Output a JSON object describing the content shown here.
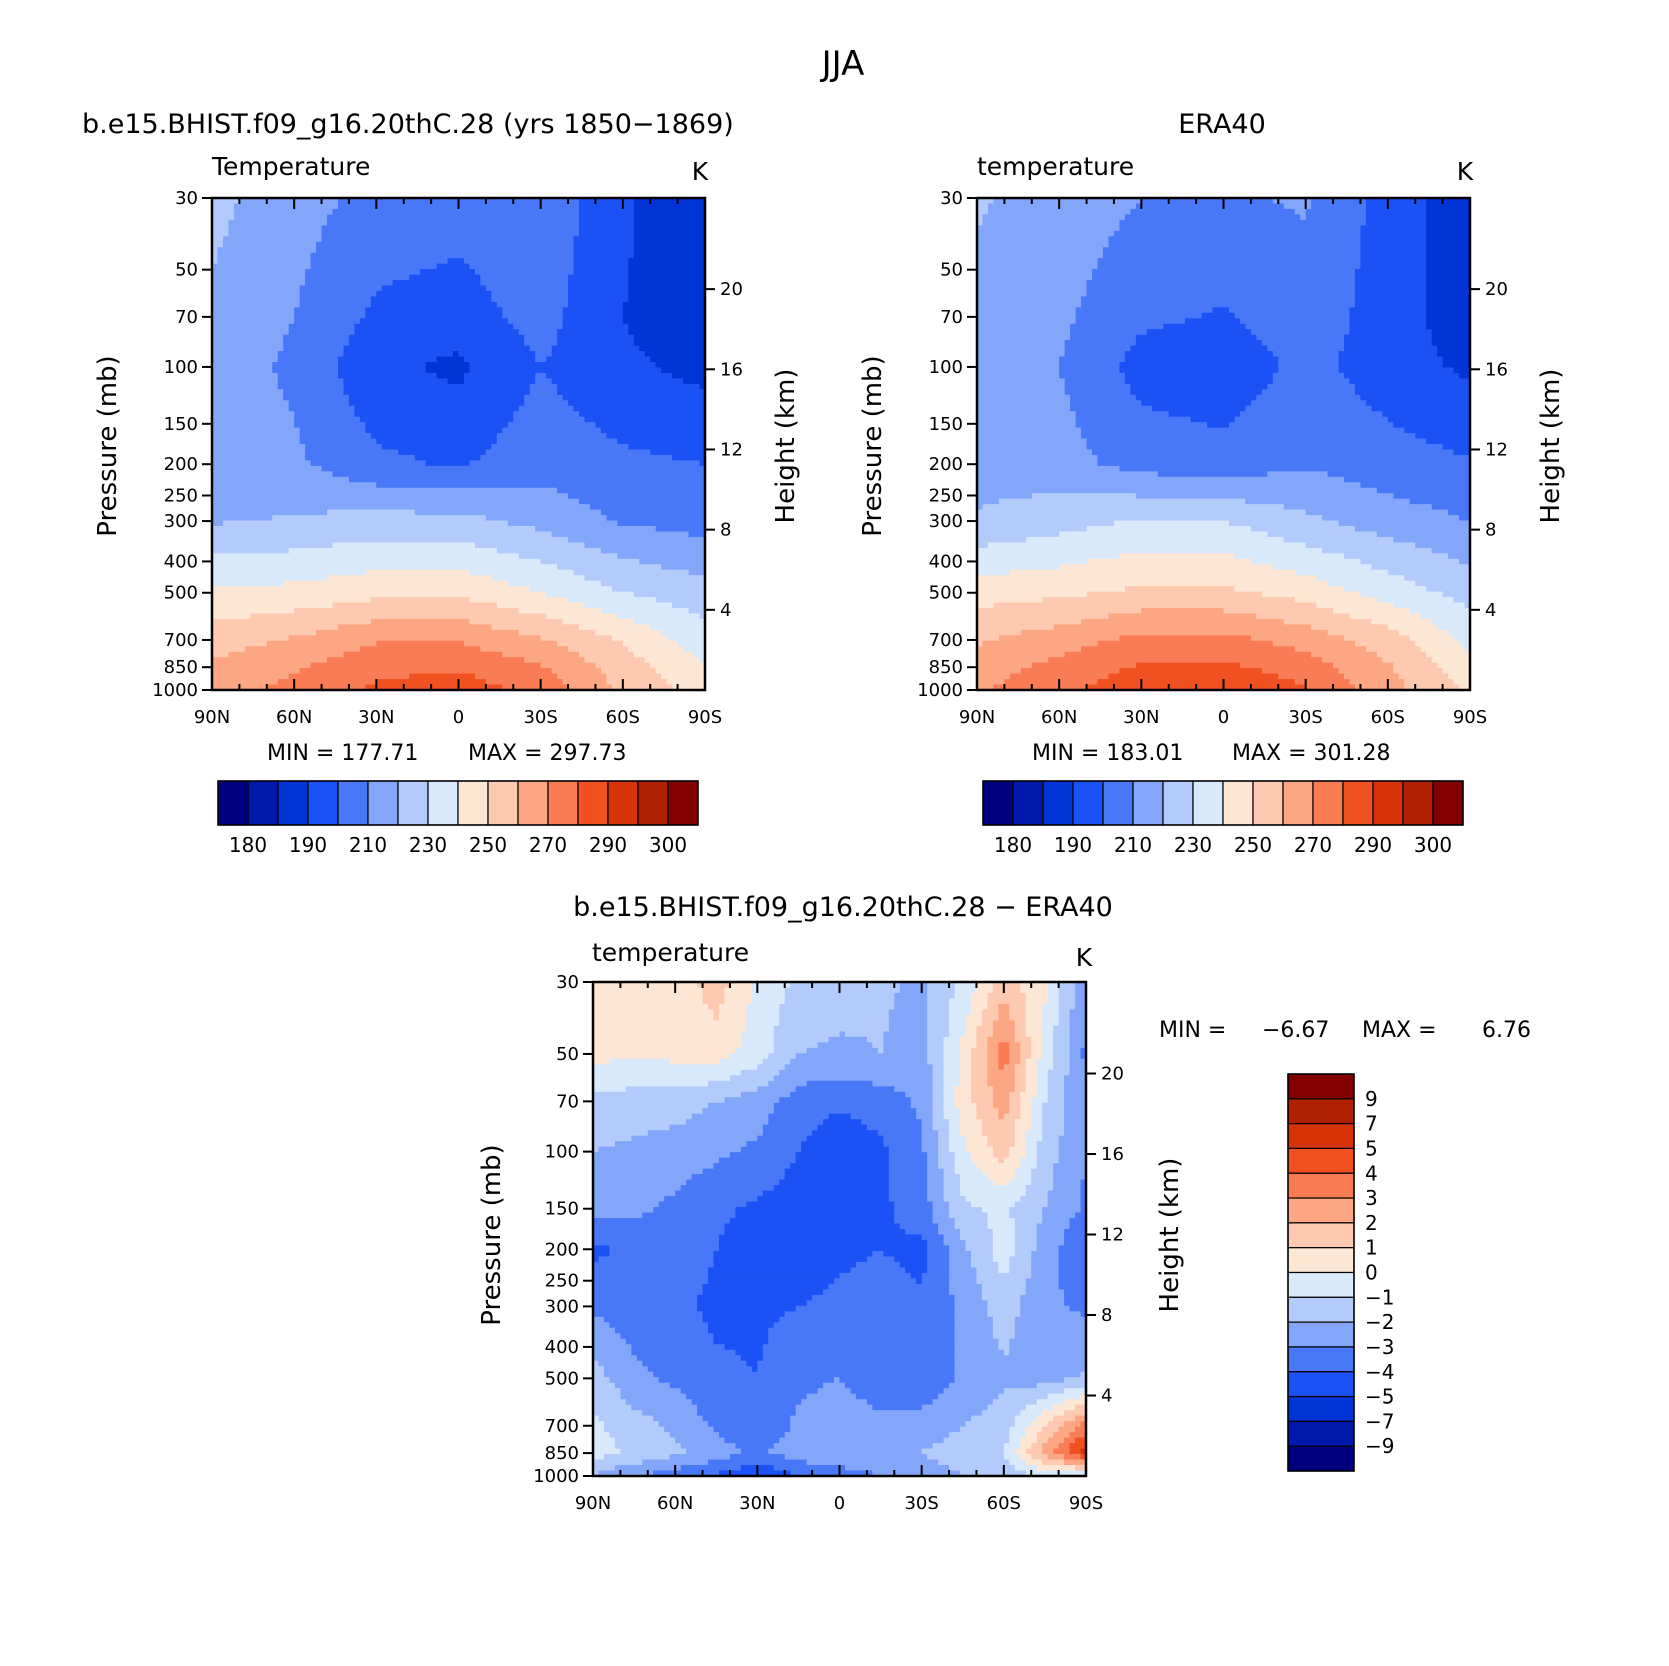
{
  "figure_title": "JJA",
  "chart_data": [
    {
      "type": "heatmap",
      "id": "model",
      "panel_title": "b.e15.BHIST.f09_g16.20thC.28 (yrs 1850−1869)",
      "variable": "Temperature",
      "units": "K",
      "ylabel": "Pressure (mb)",
      "y2label": "Height (km)",
      "x_ticks": [
        "90N",
        "60N",
        "30N",
        "0",
        "30S",
        "60S",
        "90S"
      ],
      "x_range": [
        90,
        -90
      ],
      "y_ticks": [
        30,
        50,
        70,
        100,
        150,
        200,
        250,
        300,
        400,
        500,
        700,
        850,
        1000
      ],
      "y_range": [
        30,
        1000
      ],
      "y2_ticks": [
        4,
        8,
        12,
        16,
        20
      ],
      "min_label": "MIN = 177.71",
      "max_label": "MAX = 297.73",
      "min": 177.71,
      "max": 297.73,
      "colorbar_labels": [
        "180",
        "190",
        "210",
        "230",
        "250",
        "270",
        "290",
        "300"
      ],
      "levels": [
        180,
        190,
        200,
        210,
        220,
        230,
        240,
        250,
        260,
        270,
        280,
        290,
        300
      ],
      "lat": [
        90,
        60,
        30,
        0,
        -30,
        -60,
        -90
      ],
      "pressure": [
        30,
        70,
        100,
        200,
        300,
        500,
        700,
        850,
        1000
      ],
      "values": [
        [
          233,
          224,
          217,
          215,
          218,
          202,
          190
        ],
        [
          228,
          220,
          208,
          205,
          214,
          200,
          192
        ],
        [
          226,
          218,
          202,
          198,
          210,
          202,
          197
        ],
        [
          225,
          222,
          212,
          209,
          216,
          212,
          210
        ],
        [
          229,
          231,
          234,
          233,
          227,
          219,
          216
        ],
        [
          252,
          253,
          257,
          258,
          250,
          240,
          234
        ],
        [
          265,
          271,
          279,
          279,
          271,
          259,
          244
        ],
        [
          272,
          279,
          287,
          289,
          281,
          265,
          251
        ],
        [
          275,
          283,
          292,
          295,
          287,
          268,
          255
        ]
      ]
    },
    {
      "type": "heatmap",
      "id": "obs",
      "panel_title": "ERA40",
      "variable": "temperature",
      "units": "K",
      "ylabel": "Pressure (mb)",
      "y2label": "Height (km)",
      "x_ticks": [
        "90N",
        "60N",
        "30N",
        "0",
        "30S",
        "60S",
        "90S"
      ],
      "x_range": [
        90,
        -90
      ],
      "y_ticks": [
        30,
        50,
        70,
        100,
        150,
        200,
        250,
        300,
        400,
        500,
        700,
        850,
        1000
      ],
      "y_range": [
        30,
        1000
      ],
      "y2_ticks": [
        4,
        8,
        12,
        16,
        20
      ],
      "min_label": "MIN = 183.01",
      "max_label": "MAX = 301.28",
      "min": 183.01,
      "max": 301.28,
      "colorbar_labels": [
        "180",
        "190",
        "210",
        "230",
        "250",
        "270",
        "290",
        "300"
      ],
      "levels": [
        180,
        190,
        200,
        210,
        220,
        230,
        240,
        250,
        260,
        270,
        280,
        290,
        300
      ],
      "lat": [
        90,
        60,
        30,
        0,
        -30,
        -60,
        -90
      ],
      "pressure": [
        30,
        70,
        100,
        200,
        300,
        500,
        700,
        850,
        1000
      ],
      "values": [
        [
          231,
          226,
          220,
          219,
          221,
          206,
          193
        ],
        [
          227,
          222,
          212,
          209,
          216,
          205,
          194
        ],
        [
          225,
          220,
          206,
          203,
          213,
          205,
          198
        ],
        [
          226,
          224,
          216,
          214,
          219,
          214,
          211
        ],
        [
          231,
          236,
          241,
          240,
          232,
          225,
          220
        ],
        [
          256,
          258,
          262,
          262,
          256,
          246,
          236
        ],
        [
          269,
          275,
          283,
          283,
          276,
          265,
          247
        ],
        [
          275,
          283,
          291,
          292,
          285,
          271,
          253
        ],
        [
          279,
          287,
          297,
          299,
          291,
          274,
          258
        ]
      ]
    },
    {
      "type": "heatmap",
      "id": "diff",
      "panel_title": "b.e15.BHIST.f09_g16.20thC.28 − ERA40",
      "variable": "temperature",
      "units": "K",
      "ylabel": "Pressure (mb)",
      "y2label": "Height (km)",
      "x_ticks": [
        "90N",
        "60N",
        "30N",
        "0",
        "30S",
        "60S",
        "90S"
      ],
      "x_range": [
        90,
        -90
      ],
      "y_ticks": [
        30,
        50,
        70,
        100,
        150,
        200,
        250,
        300,
        400,
        500,
        700,
        850,
        1000
      ],
      "y_range": [
        30,
        1000
      ],
      "y2_ticks": [
        4,
        8,
        12,
        16,
        20
      ],
      "min_label": "MIN =",
      "min_value": "−6.67",
      "max_label": "MAX =",
      "max_value": "6.76",
      "min": -6.67,
      "max": 6.76,
      "colorbar_labels": [
        "9",
        "7",
        "5",
        "4",
        "3",
        "2",
        "1",
        "0",
        "−1",
        "−2",
        "−3",
        "−4",
        "−5",
        "−7",
        "−9"
      ],
      "levels": [
        -9,
        -7,
        -5,
        -4,
        -3,
        -2,
        -1,
        0,
        1,
        2,
        3,
        4,
        5,
        7,
        9
      ],
      "lat": [
        90,
        75,
        60,
        45,
        30,
        15,
        0,
        -15,
        -30,
        -45,
        -60,
        -75,
        -90
      ],
      "pressure": [
        30,
        50,
        70,
        100,
        150,
        200,
        300,
        500,
        700,
        850,
        1000
      ],
      "values": [
        [
          0.5,
          0.3,
          0.4,
          1.5,
          -0.2,
          -1.2,
          -1.5,
          -1.8,
          -2.2,
          -0.8,
          1.5,
          0.2,
          -2.8
        ],
        [
          0.3,
          0.2,
          0.3,
          0.5,
          -0.5,
          -2.0,
          -2.2,
          -2.0,
          -2.5,
          0.2,
          3.5,
          -0.5,
          -3.2
        ],
        [
          -1.2,
          -1.5,
          -1.5,
          -2.0,
          -2.5,
          -3.5,
          -3.8,
          -3.5,
          -2.8,
          0.5,
          2.5,
          -1.0,
          -3.0
        ],
        [
          -2.0,
          -2.2,
          -2.5,
          -2.8,
          -3.2,
          -4.0,
          -4.8,
          -4.2,
          -3.2,
          -0.2,
          1.5,
          -1.5,
          -3.0
        ],
        [
          -2.5,
          -2.8,
          -3.2,
          -3.8,
          -4.2,
          -4.5,
          -4.8,
          -4.2,
          -3.5,
          -1.2,
          -0.8,
          -2.0,
          -3.2
        ],
        [
          -4.2,
          -3.8,
          -3.5,
          -4.0,
          -4.5,
          -4.5,
          -4.2,
          -4.0,
          -4.3,
          -2.2,
          -0.5,
          -2.5,
          -4.0
        ],
        [
          -3.2,
          -3.5,
          -3.8,
          -4.2,
          -4.2,
          -4.0,
          -3.8,
          -3.5,
          -3.8,
          -2.8,
          -1.5,
          -2.8,
          -3.2
        ],
        [
          -1.5,
          -2.8,
          -3.2,
          -3.8,
          -4.0,
          -3.2,
          -3.0,
          -3.5,
          -3.8,
          -2.8,
          -2.2,
          -2.5,
          -1.8
        ],
        [
          -0.8,
          -1.5,
          -2.2,
          -3.2,
          -3.8,
          -2.8,
          -2.5,
          -2.8,
          -2.5,
          -2.0,
          -1.5,
          1.0,
          3.5
        ],
        [
          -0.6,
          -1.2,
          -1.8,
          -2.5,
          -3.2,
          -2.5,
          -2.2,
          -2.5,
          -2.0,
          -1.5,
          -1.0,
          2.5,
          5.5
        ],
        [
          -2.0,
          -3.0,
          -3.5,
          -4.2,
          -5.0,
          -4.0,
          -3.5,
          -3.0,
          -2.5,
          -2.0,
          -1.5,
          -1.0,
          -1.0
        ]
      ]
    }
  ],
  "colors": {
    "abs_palette": [
      "#00007f",
      "#0019ad",
      "#0034d6",
      "#1a52f5",
      "#4878f7",
      "#83a6fa",
      "#b2cbfb",
      "#d8e9fb",
      "#fde7d4",
      "#fdc9b0",
      "#fca683",
      "#f97c54",
      "#f15020",
      "#d63308",
      "#b02104",
      "#830000"
    ],
    "diff_palette": [
      "#00007f",
      "#0019ad",
      "#0034d6",
      "#1a52f5",
      "#4878f7",
      "#83a6fa",
      "#b2cbfb",
      "#d8e9fb",
      "#fde7d4",
      "#fdc9b0",
      "#fca683",
      "#f97c54",
      "#f15020",
      "#d63308",
      "#b02104",
      "#830000"
    ]
  }
}
